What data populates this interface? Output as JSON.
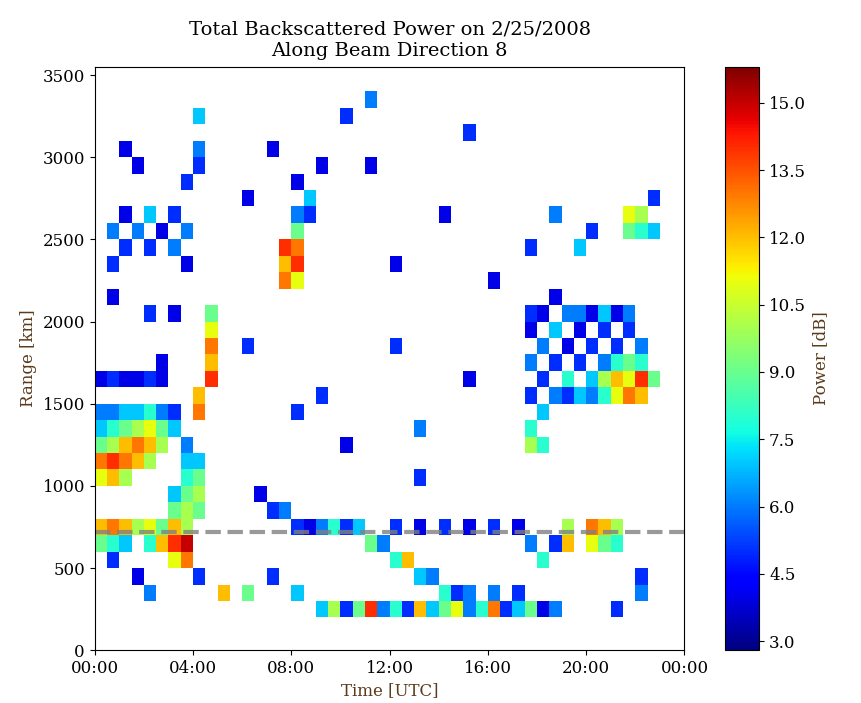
{
  "chart_data": {
    "type": "heatmap",
    "title": "Total Backscattered Power on 2/25/2008\nAlong Beam Direction 8",
    "x_label": "Time [UTC]",
    "y_label": "Range [km]",
    "colorbar_label": "Power [dB]",
    "xlim": [
      0,
      24
    ],
    "xticks": [
      {
        "value": 0,
        "label": "00:00"
      },
      {
        "value": 4,
        "label": "04:00"
      },
      {
        "value": 8,
        "label": "08:00"
      },
      {
        "value": 12,
        "label": "12:00"
      },
      {
        "value": 16,
        "label": "16:00"
      },
      {
        "value": 20,
        "label": "20:00"
      },
      {
        "value": 24,
        "label": "00:00"
      }
    ],
    "ylim": [
      0,
      3550
    ],
    "yticks": [
      0,
      500,
      1000,
      1500,
      2000,
      2500,
      3000,
      3500
    ],
    "colorbar_range": [
      2.8,
      15.8
    ],
    "colorbar_ticks": [
      3.0,
      4.5,
      6.0,
      7.5,
      9.0,
      10.5,
      12.0,
      13.5,
      15.0
    ],
    "color": "jet",
    "reference_line": 720,
    "time_step": 0.5,
    "range_step": 100,
    "cells": [
      [
        0,
        1000,
        11
      ],
      [
        0,
        1100,
        13
      ],
      [
        0,
        1200,
        9
      ],
      [
        0,
        1300,
        7
      ],
      [
        0,
        1400,
        6
      ],
      [
        0.5,
        1000,
        12
      ],
      [
        0.5,
        1100,
        14
      ],
      [
        0.5,
        1200,
        10
      ],
      [
        0.5,
        1300,
        8
      ],
      [
        0.5,
        1400,
        6
      ],
      [
        1,
        1000,
        10
      ],
      [
        1,
        1100,
        13
      ],
      [
        1,
        1200,
        12
      ],
      [
        1,
        1300,
        9
      ],
      [
        1,
        1400,
        7
      ],
      [
        1.5,
        1100,
        12
      ],
      [
        1.5,
        1200,
        13
      ],
      [
        1.5,
        1300,
        10
      ],
      [
        1.5,
        1400,
        7
      ],
      [
        2,
        1100,
        10
      ],
      [
        2,
        1200,
        12
      ],
      [
        2,
        1300,
        11
      ],
      [
        2,
        1400,
        8
      ],
      [
        2.5,
        1200,
        10
      ],
      [
        2.5,
        1300,
        9
      ],
      [
        2.5,
        1400,
        6
      ],
      [
        3,
        1300,
        7
      ],
      [
        3,
        1400,
        5
      ],
      [
        0,
        600,
        9
      ],
      [
        0,
        700,
        12
      ],
      [
        0.5,
        600,
        8
      ],
      [
        0.5,
        700,
        13
      ],
      [
        1,
        700,
        12
      ],
      [
        1,
        600,
        7
      ],
      [
        1.5,
        700,
        10
      ],
      [
        2,
        700,
        11
      ],
      [
        2,
        600,
        8
      ],
      [
        2.5,
        600,
        12
      ],
      [
        2.5,
        700,
        9
      ],
      [
        3,
        500,
        11
      ],
      [
        3,
        600,
        14
      ],
      [
        3,
        700,
        12
      ],
      [
        3.5,
        500,
        13
      ],
      [
        3.5,
        600,
        15
      ],
      [
        3.5,
        700,
        10
      ],
      [
        3,
        800,
        9
      ],
      [
        3,
        900,
        7
      ],
      [
        3.5,
        800,
        10
      ],
      [
        3.5,
        900,
        9
      ],
      [
        3.5,
        1000,
        8
      ],
      [
        3.5,
        1100,
        7
      ],
      [
        3.5,
        1200,
        6
      ],
      [
        4,
        800,
        9
      ],
      [
        4,
        900,
        10
      ],
      [
        4,
        1000,
        9
      ],
      [
        4,
        1100,
        7
      ],
      [
        4,
        1400,
        13
      ],
      [
        4,
        1500,
        12
      ],
      [
        4.5,
        1600,
        14
      ],
      [
        4.5,
        1700,
        12
      ],
      [
        4.5,
        1800,
        13
      ],
      [
        4.5,
        1900,
        11
      ],
      [
        4.5,
        2000,
        9
      ],
      [
        0,
        1600,
        4
      ],
      [
        0.5,
        1600,
        5
      ],
      [
        1,
        1600,
        4
      ],
      [
        1.5,
        1600,
        4
      ],
      [
        2,
        1600,
        5
      ],
      [
        2.5,
        1600,
        4
      ],
      [
        2.5,
        1700,
        4
      ],
      [
        0.5,
        2300,
        5
      ],
      [
        0.5,
        2500,
        6
      ],
      [
        1,
        2400,
        5
      ],
      [
        1,
        2600,
        4
      ],
      [
        1,
        3000,
        4
      ],
      [
        1.5,
        2500,
        6
      ],
      [
        1.5,
        2900,
        4
      ],
      [
        2,
        2400,
        5
      ],
      [
        2,
        2600,
        7
      ],
      [
        2.5,
        2500,
        4
      ],
      [
        3,
        2600,
        5
      ],
      [
        3,
        2400,
        6
      ],
      [
        3.5,
        2300,
        4
      ],
      [
        3.5,
        2500,
        6
      ],
      [
        3.5,
        2800,
        5
      ],
      [
        4,
        3000,
        6
      ],
      [
        4,
        3200,
        7
      ],
      [
        4,
        2900,
        5
      ],
      [
        0.5,
        2100,
        4
      ],
      [
        2,
        2000,
        5
      ],
      [
        3,
        2000,
        4
      ],
      [
        7.5,
        2200,
        13
      ],
      [
        7.5,
        2300,
        12
      ],
      [
        7.5,
        2400,
        14
      ],
      [
        8,
        2200,
        11
      ],
      [
        8,
        2300,
        14
      ],
      [
        8,
        2400,
        13
      ],
      [
        8,
        2500,
        9
      ],
      [
        8,
        2600,
        6
      ],
      [
        8.5,
        2600,
        5
      ],
      [
        8.5,
        2700,
        7
      ],
      [
        8,
        2800,
        4
      ],
      [
        9,
        2900,
        4
      ],
      [
        6.5,
        900,
        4
      ],
      [
        7,
        800,
        5
      ],
      [
        7.5,
        800,
        6
      ],
      [
        8,
        700,
        5
      ],
      [
        8.5,
        700,
        4
      ],
      [
        9,
        700,
        6
      ],
      [
        9.5,
        700,
        8
      ],
      [
        10,
        700,
        5
      ],
      [
        10.5,
        700,
        7
      ],
      [
        11,
        600,
        9
      ],
      [
        11.5,
        600,
        6
      ],
      [
        12,
        500,
        8
      ],
      [
        12.5,
        500,
        12
      ],
      [
        13,
        400,
        7
      ],
      [
        13.5,
        400,
        6
      ],
      [
        14,
        300,
        8
      ],
      [
        14.5,
        300,
        5
      ],
      [
        15,
        300,
        6
      ],
      [
        12,
        700,
        5
      ],
      [
        13,
        700,
        4
      ],
      [
        14,
        700,
        5
      ],
      [
        15,
        700,
        4
      ],
      [
        16,
        700,
        5
      ],
      [
        17,
        700,
        4
      ],
      [
        9,
        200,
        7
      ],
      [
        9.5,
        200,
        10
      ],
      [
        10,
        200,
        5
      ],
      [
        10.5,
        200,
        9
      ],
      [
        11,
        200,
        14
      ],
      [
        11.5,
        200,
        6
      ],
      [
        12,
        200,
        8
      ],
      [
        12.5,
        200,
        5
      ],
      [
        13,
        200,
        12
      ],
      [
        13.5,
        200,
        7
      ],
      [
        14,
        200,
        9
      ],
      [
        14.5,
        200,
        11
      ],
      [
        15,
        200,
        6
      ],
      [
        15.5,
        200,
        8
      ],
      [
        16,
        200,
        13
      ],
      [
        16.5,
        200,
        5
      ],
      [
        17,
        200,
        7
      ],
      [
        17.5,
        200,
        9
      ],
      [
        18,
        200,
        4
      ],
      [
        18.5,
        200,
        6
      ],
      [
        16,
        300,
        6
      ],
      [
        17,
        300,
        5
      ],
      [
        0.5,
        500,
        5
      ],
      [
        1.5,
        400,
        4
      ],
      [
        2,
        300,
        6
      ],
      [
        4,
        400,
        5
      ],
      [
        5,
        300,
        12
      ],
      [
        6,
        300,
        9
      ],
      [
        7,
        400,
        5
      ],
      [
        8,
        300,
        7
      ],
      [
        17.5,
        1200,
        10
      ],
      [
        17.5,
        1300,
        8
      ],
      [
        17.5,
        1500,
        5
      ],
      [
        17.5,
        1700,
        6
      ],
      [
        17.5,
        1900,
        4
      ],
      [
        17.5,
        2000,
        5
      ],
      [
        18,
        1200,
        8
      ],
      [
        18,
        1400,
        7
      ],
      [
        18,
        1600,
        5
      ],
      [
        18,
        1800,
        6
      ],
      [
        18,
        2000,
        4
      ],
      [
        18.5,
        1500,
        6
      ],
      [
        18.5,
        1700,
        5
      ],
      [
        18.5,
        1900,
        7
      ],
      [
        18.5,
        2100,
        4
      ],
      [
        19,
        1500,
        5
      ],
      [
        19,
        1600,
        8
      ],
      [
        19,
        1800,
        4
      ],
      [
        19,
        2000,
        6
      ],
      [
        19.5,
        1500,
        7
      ],
      [
        19.5,
        1700,
        5
      ],
      [
        19.5,
        1900,
        4
      ],
      [
        19.5,
        2000,
        6
      ],
      [
        20,
        1500,
        6
      ],
      [
        20,
        1600,
        7
      ],
      [
        20,
        1800,
        5
      ],
      [
        20,
        2000,
        4
      ],
      [
        20.5,
        1500,
        8
      ],
      [
        20.5,
        1600,
        10
      ],
      [
        20.5,
        1700,
        6
      ],
      [
        20.5,
        1900,
        5
      ],
      [
        20.5,
        2000,
        7
      ],
      [
        21,
        1500,
        11
      ],
      [
        21,
        1600,
        12
      ],
      [
        21,
        1700,
        8
      ],
      [
        21,
        1800,
        5
      ],
      [
        21,
        2000,
        4
      ],
      [
        21.5,
        1500,
        13
      ],
      [
        21.5,
        1600,
        11
      ],
      [
        21.5,
        1700,
        9
      ],
      [
        21.5,
        1900,
        5
      ],
      [
        21.5,
        2000,
        6
      ],
      [
        22,
        1500,
        12
      ],
      [
        22,
        1600,
        14
      ],
      [
        22,
        1700,
        8
      ],
      [
        22,
        1800,
        6
      ],
      [
        22.5,
        1600,
        9
      ],
      [
        17.5,
        2400,
        5
      ],
      [
        18.5,
        2600,
        6
      ],
      [
        19.5,
        2400,
        7
      ],
      [
        20,
        2500,
        5
      ],
      [
        21.5,
        2500,
        9
      ],
      [
        21.5,
        2600,
        11
      ],
      [
        22,
        2500,
        8
      ],
      [
        22,
        2600,
        10
      ],
      [
        22.5,
        2500,
        7
      ],
      [
        22.5,
        2700,
        5
      ],
      [
        17.5,
        600,
        6
      ],
      [
        18,
        500,
        8
      ],
      [
        18.5,
        600,
        5
      ],
      [
        19,
        600,
        12
      ],
      [
        19,
        700,
        10
      ],
      [
        20,
        600,
        11
      ],
      [
        20,
        700,
        13
      ],
      [
        20.5,
        600,
        9
      ],
      [
        20.5,
        700,
        12
      ],
      [
        21,
        700,
        10
      ],
      [
        21,
        600,
        8
      ],
      [
        22,
        400,
        5
      ],
      [
        22,
        300,
        6
      ],
      [
        21,
        200,
        5
      ],
      [
        6,
        2700,
        4
      ],
      [
        10,
        3200,
        5
      ],
      [
        11,
        2900,
        4
      ],
      [
        12,
        1800,
        5
      ],
      [
        13,
        1300,
        6
      ],
      [
        14,
        2600,
        4
      ],
      [
        15,
        3100,
        5
      ],
      [
        9,
        1500,
        5
      ],
      [
        10,
        1200,
        4
      ],
      [
        16,
        2200,
        4
      ],
      [
        6,
        1800,
        5
      ],
      [
        7,
        3000,
        4
      ],
      [
        11,
        3300,
        6
      ],
      [
        13,
        1000,
        5
      ],
      [
        15,
        1600,
        4
      ],
      [
        8,
        1400,
        5
      ],
      [
        12,
        2300,
        4
      ]
    ]
  }
}
